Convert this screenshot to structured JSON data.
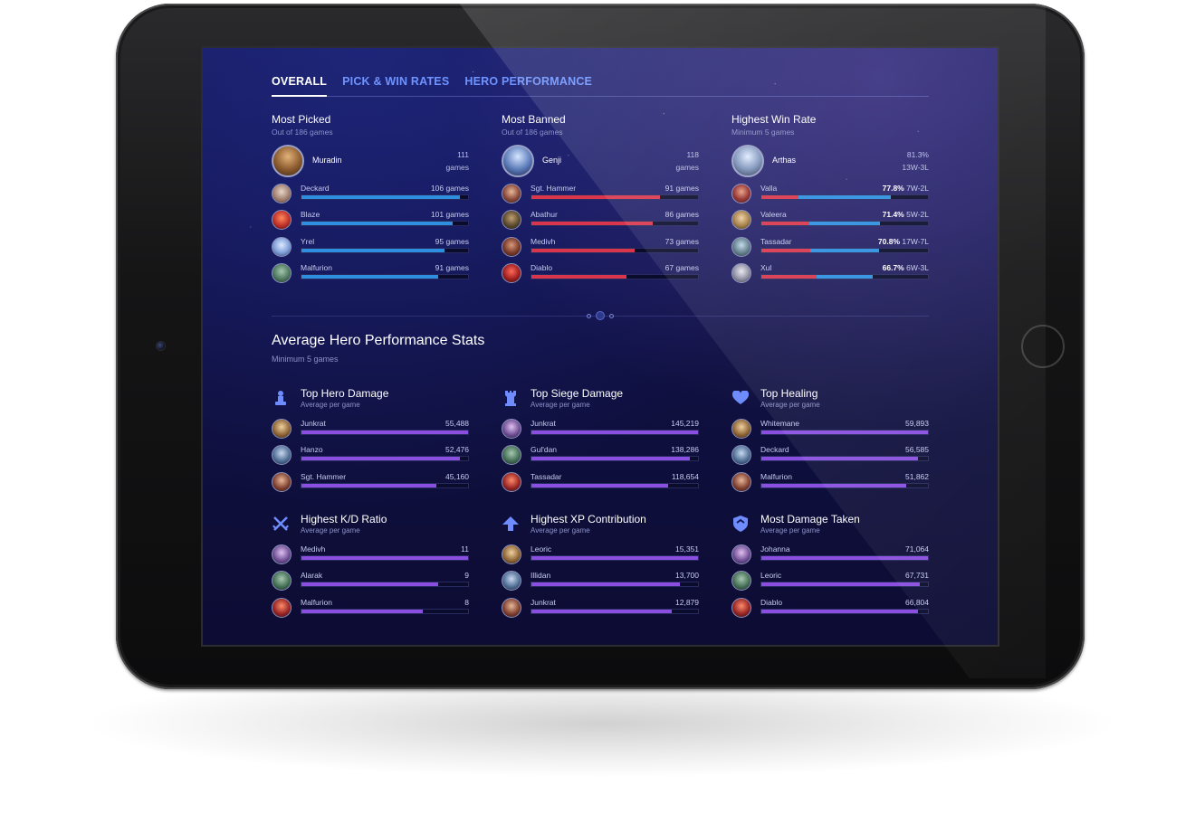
{
  "colors": {
    "accent_blue": "#2e8fe0",
    "accent_red": "#d9364d",
    "accent_purple": "#8a4fe0",
    "tab_blue": "#6f94ff"
  },
  "tabs": [
    {
      "label": "OVERALL",
      "active": true
    },
    {
      "label": "PICK & WIN RATES",
      "active": false
    },
    {
      "label": "HERO PERFORMANCE",
      "active": false
    }
  ],
  "most_picked": {
    "title": "Most Picked",
    "subtitle": "Out of 186 games",
    "featured": {
      "name": "Muradin",
      "value_line1": "111",
      "value_line2": "games"
    },
    "rows": [
      {
        "name": "Deckard",
        "value": "106 games",
        "fraction": 0.95
      },
      {
        "name": "Blaze",
        "value": "101 games",
        "fraction": 0.91
      },
      {
        "name": "Yrel",
        "value": "95 games",
        "fraction": 0.86
      },
      {
        "name": "Malfurion",
        "value": "91 games",
        "fraction": 0.82
      }
    ]
  },
  "most_banned": {
    "title": "Most Banned",
    "subtitle": "Out of 186 games",
    "featured": {
      "name": "Genji",
      "value_line1": "118",
      "value_line2": "games"
    },
    "rows": [
      {
        "name": "Sgt. Hammer",
        "value": "91 games",
        "fraction": 0.77
      },
      {
        "name": "Abathur",
        "value": "86 games",
        "fraction": 0.73
      },
      {
        "name": "Medivh",
        "value": "73 games",
        "fraction": 0.62
      },
      {
        "name": "Diablo",
        "value": "67 games",
        "fraction": 0.57
      }
    ]
  },
  "highest_win_rate": {
    "title": "Highest Win Rate",
    "subtitle": "Minimum 5 games",
    "featured": {
      "name": "Arthas",
      "value_line1": "81.3%",
      "value_line2": "13W-3L"
    },
    "rows": [
      {
        "name": "Valla",
        "pct": "77.8%",
        "record": "7W-2L",
        "fraction": 0.778
      },
      {
        "name": "Valeera",
        "pct": "71.4%",
        "record": "5W-2L",
        "fraction": 0.714
      },
      {
        "name": "Tassadar",
        "pct": "70.8%",
        "record": "17W-7L",
        "fraction": 0.708
      },
      {
        "name": "Xul",
        "pct": "66.7%",
        "record": "6W-3L",
        "fraction": 0.667
      }
    ]
  },
  "performance": {
    "title": "Average Hero Performance Stats",
    "subtitle": "Minimum 5 games",
    "stats": [
      {
        "key": "hero_damage",
        "icon": "fist-icon",
        "title": "Top Hero Damage",
        "subtitle": "Average per game",
        "rows": [
          {
            "name": "Junkrat",
            "value": "55,488",
            "fraction": 1.0
          },
          {
            "name": "Hanzo",
            "value": "52,476",
            "fraction": 0.95
          },
          {
            "name": "Sgt. Hammer",
            "value": "45,160",
            "fraction": 0.81
          }
        ]
      },
      {
        "key": "siege_damage",
        "icon": "tower-icon",
        "title": "Top Siege Damage",
        "subtitle": "Average per game",
        "rows": [
          {
            "name": "Junkrat",
            "value": "145,219",
            "fraction": 1.0
          },
          {
            "name": "Gul'dan",
            "value": "138,286",
            "fraction": 0.95
          },
          {
            "name": "Tassadar",
            "value": "118,654",
            "fraction": 0.82
          }
        ]
      },
      {
        "key": "healing",
        "icon": "heart-icon",
        "title": "Top Healing",
        "subtitle": "Average per game",
        "rows": [
          {
            "name": "Whitemane",
            "value": "59,893",
            "fraction": 1.0
          },
          {
            "name": "Deckard",
            "value": "56,585",
            "fraction": 0.94
          },
          {
            "name": "Malfurion",
            "value": "51,862",
            "fraction": 0.87
          }
        ]
      },
      {
        "key": "kd_ratio",
        "icon": "crossed-swords-icon",
        "title": "Highest K/D Ratio",
        "subtitle": "Average per game",
        "rows": [
          {
            "name": "Medivh",
            "value": "11",
            "fraction": 1.0
          },
          {
            "name": "Alarak",
            "value": "9",
            "fraction": 0.82
          },
          {
            "name": "Malfurion",
            "value": "8",
            "fraction": 0.73
          }
        ]
      },
      {
        "key": "xp_contribution",
        "icon": "arrow-up-icon",
        "title": "Highest XP Contribution",
        "subtitle": "Average per game",
        "rows": [
          {
            "name": "Leoric",
            "value": "15,351",
            "fraction": 1.0
          },
          {
            "name": "Illidan",
            "value": "13,700",
            "fraction": 0.89
          },
          {
            "name": "Junkrat",
            "value": "12,879",
            "fraction": 0.84
          }
        ]
      },
      {
        "key": "damage_taken",
        "icon": "shield-icon",
        "title": "Most Damage Taken",
        "subtitle": "Average per game",
        "rows": [
          {
            "name": "Johanna",
            "value": "71,064",
            "fraction": 1.0
          },
          {
            "name": "Leoric",
            "value": "67,731",
            "fraction": 0.95
          },
          {
            "name": "Diablo",
            "value": "66,804",
            "fraction": 0.94
          }
        ]
      }
    ]
  }
}
